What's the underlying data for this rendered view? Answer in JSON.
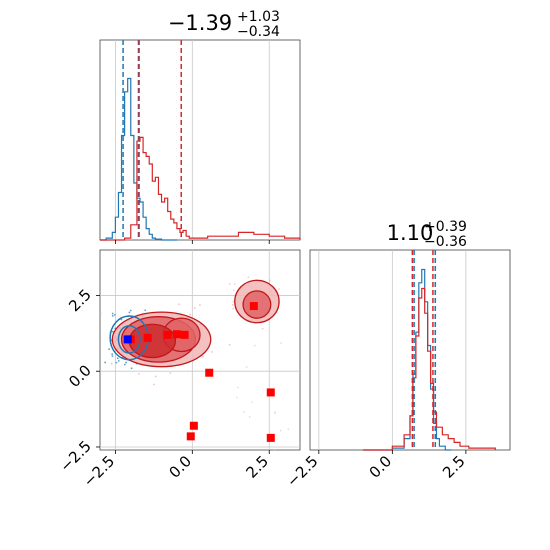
{
  "chart_data": [
    {
      "panel": "marginal-x",
      "type": "histogram",
      "title": {
        "value": "−1.39",
        "sup": "+1.03",
        "sub": "−0.34"
      },
      "xlim": [
        -3.0,
        3.5
      ],
      "xticks": [
        -2.5,
        0.0,
        2.5
      ],
      "grid": true,
      "series": [
        {
          "color": "#1f77b4",
          "bins": [
            -3.0,
            -2.8,
            -2.6,
            -2.5,
            -2.4,
            -2.3,
            -2.2,
            -2.1,
            -2.0,
            -1.9,
            -1.8,
            -1.7,
            -1.6,
            -1.5,
            -1.4,
            -1.3,
            -1.2,
            -1.0,
            -0.5
          ],
          "heights": [
            0,
            0.01,
            0.04,
            0.12,
            0.25,
            0.55,
            0.78,
            0.85,
            0.55,
            0.3,
            0.22,
            0.2,
            0.12,
            0.06,
            0.03,
            0.01,
            0.005,
            0
          ]
        },
        {
          "color": "#d62728",
          "bins": [
            -3.0,
            -2.2,
            -2.0,
            -1.8,
            -1.7,
            -1.6,
            -1.5,
            -1.4,
            -1.3,
            -1.2,
            -1.1,
            -1.0,
            -0.9,
            -0.8,
            -0.7,
            -0.6,
            -0.5,
            -0.4,
            -0.3,
            -0.2,
            -0.1,
            0.0,
            0.5,
            1.0,
            1.5,
            2.0,
            2.5,
            3.0,
            3.5
          ],
          "heights": [
            0,
            0.01,
            0.08,
            0.52,
            0.54,
            0.46,
            0.44,
            0.4,
            0.31,
            0.33,
            0.24,
            0.2,
            0.22,
            0.15,
            0.11,
            0.09,
            0.06,
            0.04,
            0.05,
            0.02,
            0.01,
            0.01,
            0.02,
            0.02,
            0.04,
            0.03,
            0.02,
            0.01
          ]
        }
      ],
      "vlines": [
        {
          "x": -2.25,
          "color": "#1f77b4"
        },
        {
          "x": -1.75,
          "color": "#1f77b4"
        },
        {
          "x": -1.73,
          "color": "#d62728"
        },
        {
          "x": -0.36,
          "color": "#d62728"
        }
      ]
    },
    {
      "panel": "marginal-y",
      "type": "histogram",
      "title": {
        "value": "1.10",
        "sup": "+0.39",
        "sub": "−0.36"
      },
      "xlim": [
        -2.8,
        4.0
      ],
      "xticks": [
        -2.5,
        0.0,
        2.5
      ],
      "grid": true,
      "series": [
        {
          "color": "#1f77b4",
          "bins": [
            -1.0,
            0.0,
            0.4,
            0.6,
            0.7,
            0.8,
            0.9,
            1.0,
            1.1,
            1.2,
            1.3,
            1.4,
            1.5,
            1.6,
            1.8,
            2.0
          ],
          "heights": [
            0,
            0.01,
            0.06,
            0.18,
            0.4,
            0.62,
            0.88,
            0.95,
            0.78,
            0.55,
            0.32,
            0.14,
            0.06,
            0.02,
            0
          ]
        },
        {
          "color": "#d62728",
          "bins": [
            -1.0,
            0.0,
            0.4,
            0.6,
            0.7,
            0.8,
            0.9,
            1.0,
            1.1,
            1.2,
            1.3,
            1.4,
            1.5,
            1.7,
            1.9,
            2.1,
            2.3,
            2.6,
            3.5
          ],
          "heights": [
            0,
            0.02,
            0.08,
            0.18,
            0.38,
            0.6,
            0.8,
            0.85,
            0.72,
            0.52,
            0.35,
            0.2,
            0.12,
            0.08,
            0.06,
            0.04,
            0.02,
            0.01
          ]
        }
      ],
      "vlines": [
        {
          "x": 0.74,
          "color": "#1f77b4"
        },
        {
          "x": 1.46,
          "color": "#1f77b4"
        },
        {
          "x": 0.68,
          "color": "#d62728"
        },
        {
          "x": 1.38,
          "color": "#d62728"
        }
      ]
    },
    {
      "panel": "joint",
      "type": "scatter",
      "xlim": [
        -3.0,
        3.5
      ],
      "ylim": [
        -2.6,
        4.0
      ],
      "xticks": [
        -2.5,
        0.0,
        2.5
      ],
      "yticks": [
        -2.5,
        0.0,
        2.5
      ],
      "grid": true,
      "red_contours": [
        {
          "cx": -1.0,
          "cy": 1.05,
          "rx": 1.6,
          "ry": 0.9,
          "level": 1
        },
        {
          "cx": -1.1,
          "cy": 1.05,
          "rx": 1.2,
          "ry": 0.75,
          "level": 2
        },
        {
          "cx": -0.35,
          "cy": 1.2,
          "rx": 0.6,
          "ry": 0.55,
          "level": 2
        },
        {
          "cx": -1.3,
          "cy": 1.0,
          "rx": 0.75,
          "ry": 0.55,
          "level": 3
        },
        {
          "cx": 2.1,
          "cy": 2.3,
          "rx": 0.72,
          "ry": 0.7,
          "level": 1
        },
        {
          "cx": 2.1,
          "cy": 2.2,
          "rx": 0.45,
          "ry": 0.45,
          "level": 2
        }
      ],
      "blue_contours": [
        {
          "cx": -2.05,
          "cy": 1.1,
          "rx": 0.62,
          "ry": 0.72
        },
        {
          "cx": -2.05,
          "cy": 1.05,
          "rx": 0.35,
          "ry": 0.45
        }
      ],
      "red_squares": [
        {
          "x": -1.45,
          "y": 1.1
        },
        {
          "x": -0.8,
          "y": 1.2
        },
        {
          "x": -0.5,
          "y": 1.22
        },
        {
          "x": -0.25,
          "y": 1.2
        },
        {
          "x": -2.0,
          "y": 1.05
        },
        {
          "x": 0.55,
          "y": -0.05
        },
        {
          "x": 2.0,
          "y": 2.15
        },
        {
          "x": 2.55,
          "y": -0.7
        },
        {
          "x": 2.55,
          "y": -2.2
        },
        {
          "x": 0.05,
          "y": -1.8
        },
        {
          "x": -0.05,
          "y": -2.15
        }
      ],
      "blue_square": {
        "x": -2.1,
        "y": 1.05
      }
    }
  ]
}
